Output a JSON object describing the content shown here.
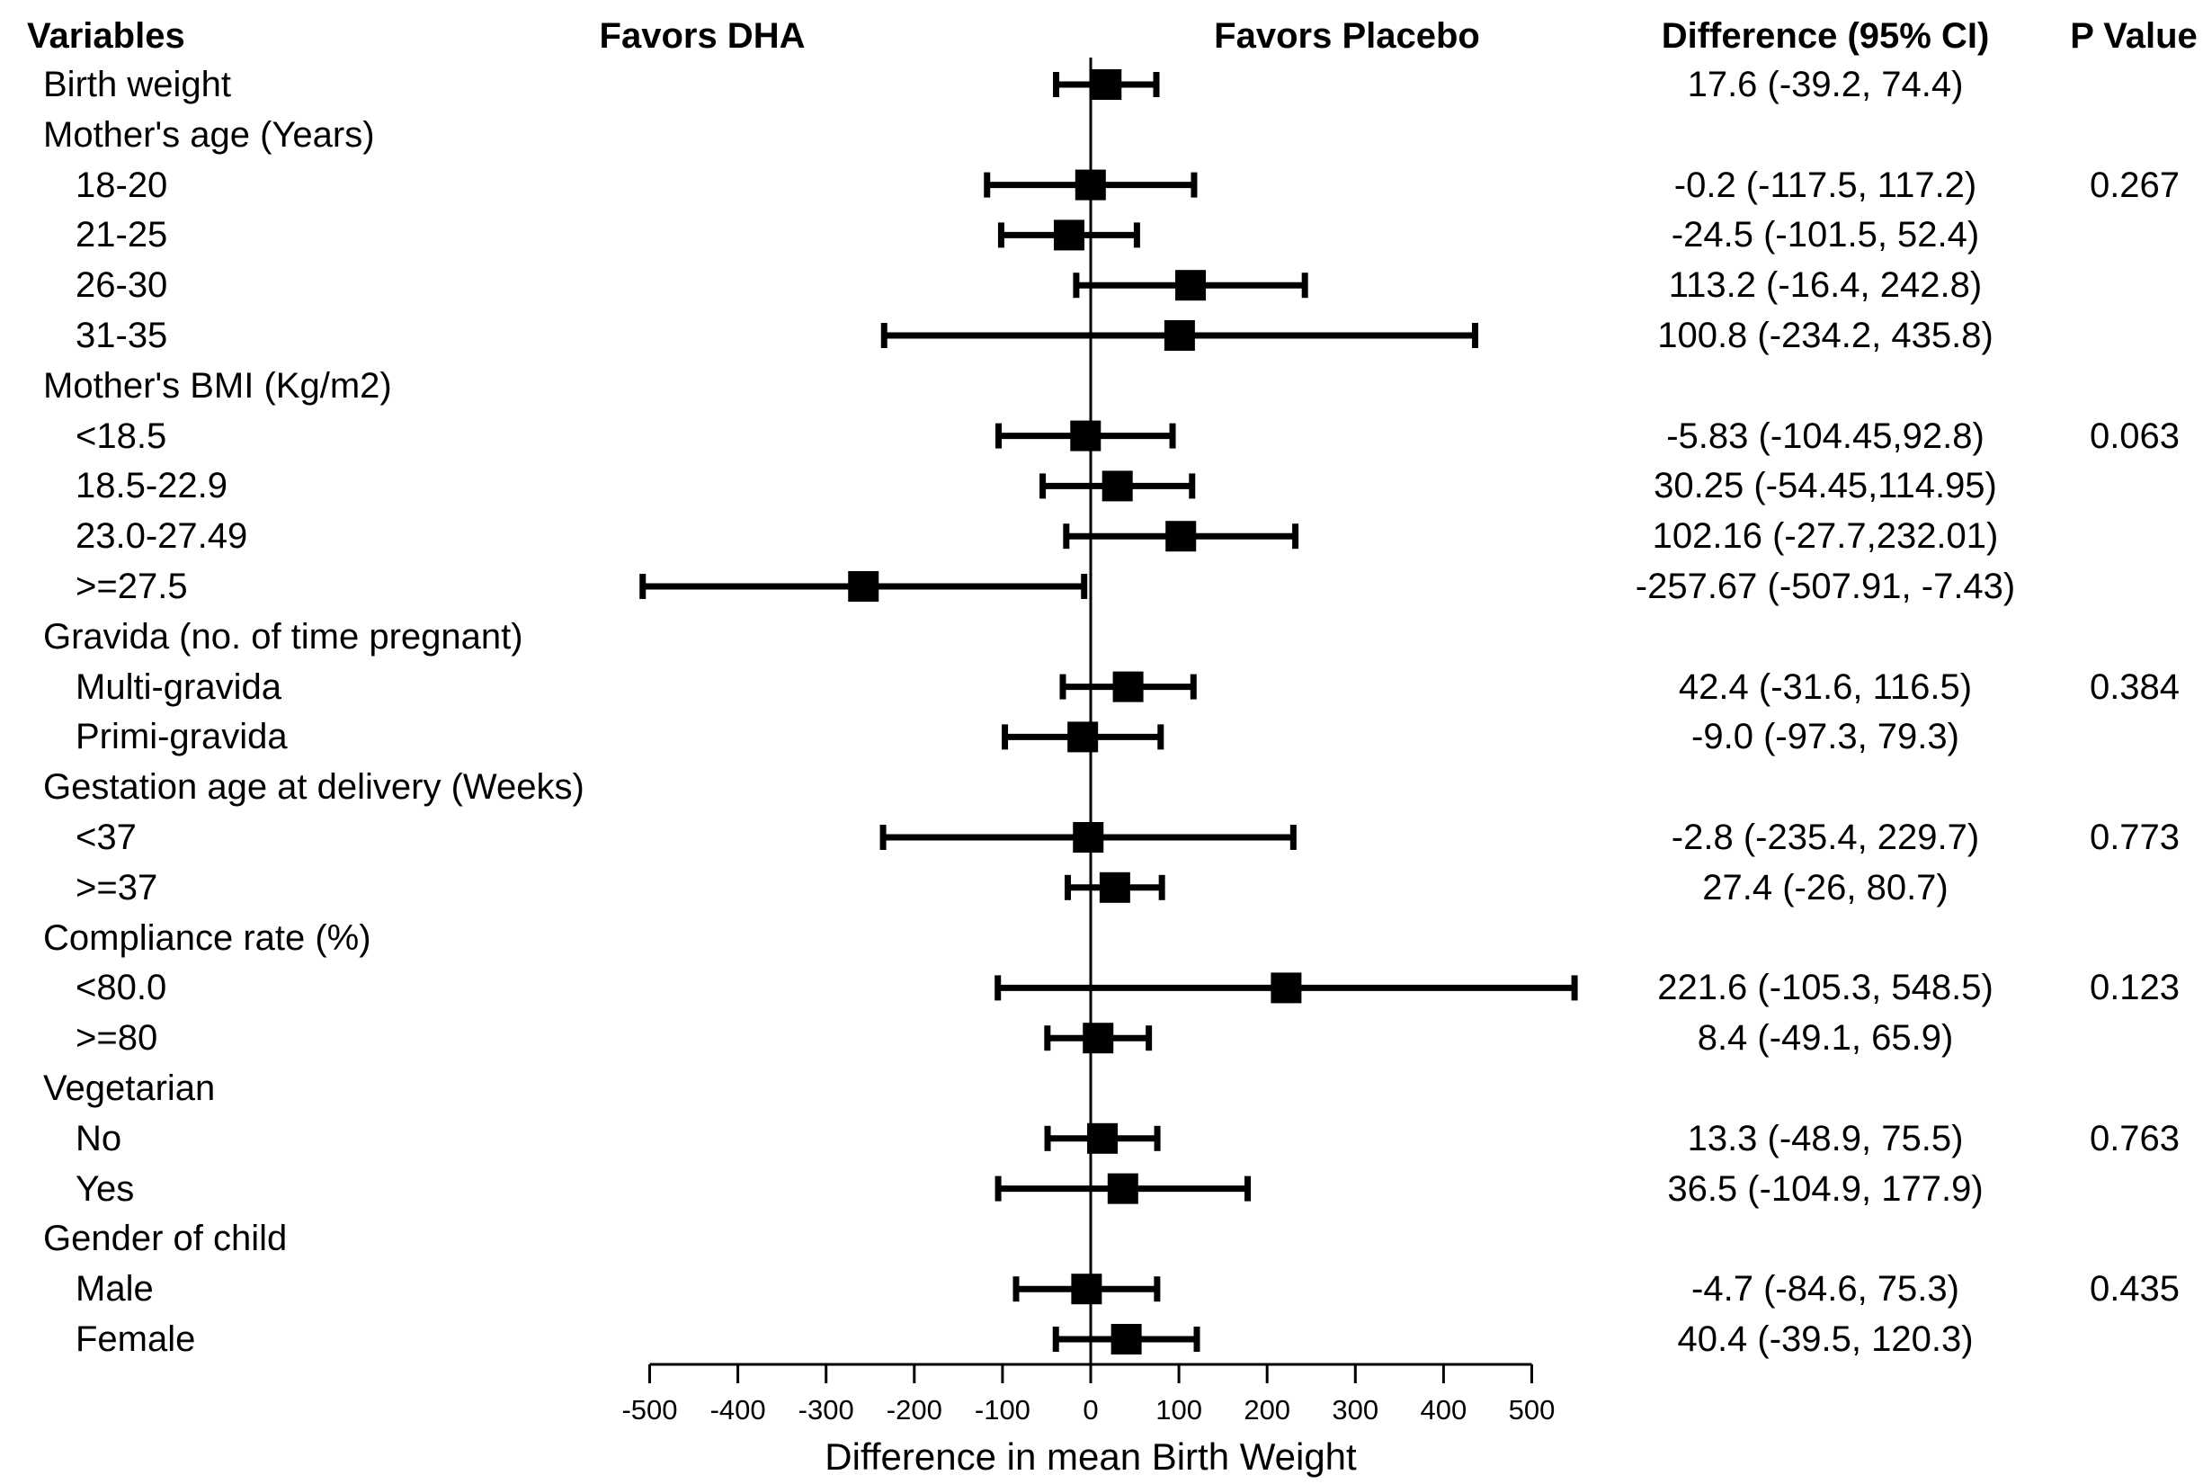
{
  "chart_data": {
    "type": "forest",
    "headers": {
      "variables": "Variables",
      "favors_left": "Favors DHA",
      "favors_right": "Favors Placebo",
      "difference": "Difference (95% CI)",
      "p_value": "P Value"
    },
    "xlabel": "Difference in mean Birth Weight",
    "xlim": [
      -500,
      500
    ],
    "x_tick_labels": [
      "-500",
      "-400",
      "-300",
      "-200",
      "-100",
      "0",
      "100",
      "200",
      "300",
      "400",
      "500"
    ],
    "x_tick_values": [
      -500,
      -400,
      -300,
      -200,
      -100,
      0,
      100,
      200,
      300,
      400,
      500
    ],
    "marker_color": "#000000",
    "rows": [
      {
        "label": "Birth weight",
        "level": 1,
        "estimate": 17.6,
        "ci": [
          -39.2,
          74.4
        ],
        "ci_text": "17.6 (-39.2, 74.4)",
        "p": ""
      },
      {
        "label": "Mother's age (Years)",
        "level": 1
      },
      {
        "label": "18-20",
        "level": 2,
        "estimate": -0.2,
        "ci": [
          -117.5,
          117.2
        ],
        "ci_text": "-0.2 (-117.5, 117.2)",
        "p": "0.267"
      },
      {
        "label": "21-25",
        "level": 2,
        "estimate": -24.5,
        "ci": [
          -101.5,
          52.4
        ],
        "ci_text": "-24.5 (-101.5, 52.4)",
        "p": ""
      },
      {
        "label": "26-30",
        "level": 2,
        "estimate": 113.2,
        "ci": [
          -16.4,
          242.8
        ],
        "ci_text": "113.2 (-16.4, 242.8)",
        "p": ""
      },
      {
        "label": "31-35",
        "level": 2,
        "estimate": 100.8,
        "ci": [
          -234.2,
          435.8
        ],
        "ci_text": "100.8 (-234.2, 435.8)",
        "p": ""
      },
      {
        "label": "Mother's BMI (Kg/m2)",
        "level": 1
      },
      {
        "label": "<18.5",
        "level": 2,
        "estimate": -5.83,
        "ci": [
          -104.45,
          92.8
        ],
        "ci_text": "-5.83 (-104.45,92.8)",
        "p": "0.063"
      },
      {
        "label": "18.5-22.9",
        "level": 2,
        "estimate": 30.25,
        "ci": [
          -54.45,
          114.95
        ],
        "ci_text": "30.25 (-54.45,114.95)",
        "p": ""
      },
      {
        "label": "23.0-27.49",
        "level": 2,
        "estimate": 102.16,
        "ci": [
          -27.7,
          232.01
        ],
        "ci_text": "102.16 (-27.7,232.01)",
        "p": ""
      },
      {
        "label": ">=27.5",
        "level": 2,
        "estimate": -257.67,
        "ci": [
          -507.91,
          -7.43
        ],
        "ci_text": "-257.67 (-507.91, -7.43)",
        "p": ""
      },
      {
        "label": "Gravida (no. of time pregnant)",
        "level": 1
      },
      {
        "label": "Multi-gravida",
        "level": 2,
        "estimate": 42.4,
        "ci": [
          -31.6,
          116.5
        ],
        "ci_text": "42.4 (-31.6, 116.5)",
        "p": "0.384"
      },
      {
        "label": "Primi-gravida",
        "level": 2,
        "estimate": -9.0,
        "ci": [
          -97.3,
          79.3
        ],
        "ci_text": "-9.0 (-97.3, 79.3)",
        "p": ""
      },
      {
        "label": "Gestation age at delivery (Weeks)",
        "level": 1
      },
      {
        "label": "<37",
        "level": 2,
        "estimate": -2.8,
        "ci": [
          -235.4,
          229.7
        ],
        "ci_text": "-2.8 (-235.4, 229.7)",
        "p": "0.773"
      },
      {
        "label": ">=37",
        "level": 2,
        "estimate": 27.4,
        "ci": [
          -26,
          80.7
        ],
        "ci_text": "27.4 (-26, 80.7)",
        "p": ""
      },
      {
        "label": "Compliance rate (%)",
        "level": 1
      },
      {
        "label": "<80.0",
        "level": 2,
        "estimate": 221.6,
        "ci": [
          -105.3,
          548.5
        ],
        "ci_text": "221.6 (-105.3, 548.5)",
        "p": "0.123"
      },
      {
        "label": ">=80",
        "level": 2,
        "estimate": 8.4,
        "ci": [
          -49.1,
          65.9
        ],
        "ci_text": "8.4 (-49.1, 65.9)",
        "p": ""
      },
      {
        "label": "Vegetarian",
        "level": 1
      },
      {
        "label": "No",
        "level": 2,
        "estimate": 13.3,
        "ci": [
          -48.9,
          75.5
        ],
        "ci_text": "13.3 (-48.9, 75.5)",
        "p": "0.763"
      },
      {
        "label": "Yes",
        "level": 2,
        "estimate": 36.5,
        "ci": [
          -104.9,
          177.9
        ],
        "ci_text": "36.5 (-104.9, 177.9)",
        "p": ""
      },
      {
        "label": "Gender of child",
        "level": 1
      },
      {
        "label": "Male",
        "level": 2,
        "estimate": -4.7,
        "ci": [
          -84.6,
          75.3
        ],
        "ci_text": "-4.7 (-84.6, 75.3)",
        "p": "0.435"
      },
      {
        "label": "Female",
        "level": 2,
        "estimate": 40.4,
        "ci": [
          -39.5,
          120.3
        ],
        "ci_text": "40.4 (-39.5, 120.3)",
        "p": ""
      }
    ]
  }
}
